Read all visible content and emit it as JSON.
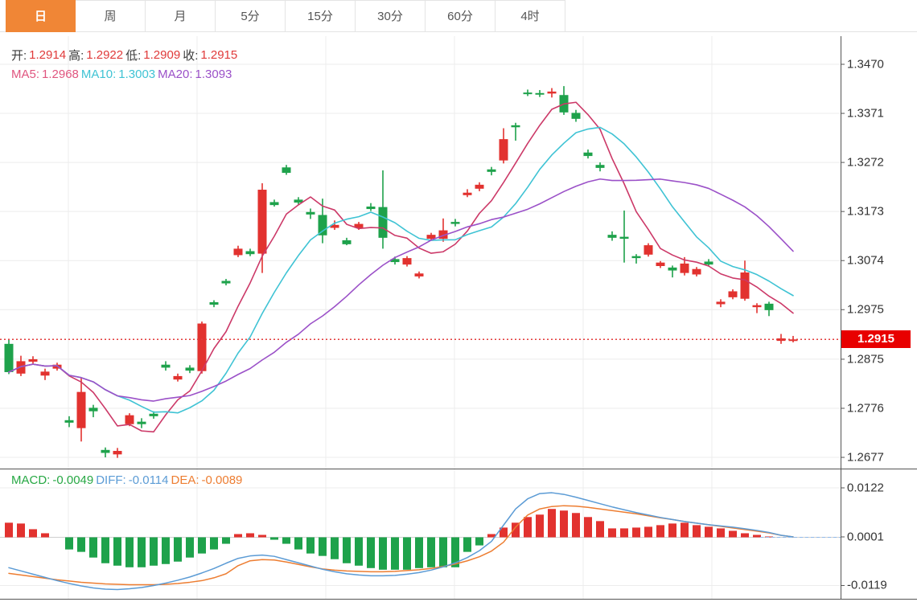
{
  "tabs": {
    "items": [
      {
        "label": "日",
        "name": "tab-day",
        "active": true
      },
      {
        "label": "周",
        "name": "tab-week",
        "active": false
      },
      {
        "label": "月",
        "name": "tab-month",
        "active": false
      },
      {
        "label": "5分",
        "name": "tab-5min",
        "active": false
      },
      {
        "label": "15分",
        "name": "tab-15min",
        "active": false
      },
      {
        "label": "30分",
        "name": "tab-30min",
        "active": false
      },
      {
        "label": "60分",
        "name": "tab-60min",
        "active": false
      },
      {
        "label": "4时",
        "name": "tab-4hour",
        "active": false
      }
    ]
  },
  "ohlc": {
    "open_label": "开:",
    "open_value": "1.2914",
    "high_label": "高:",
    "high_value": "1.2922",
    "low_label": "低:",
    "low_value": "1.2909",
    "close_label": "收:",
    "close_value": "1.2915"
  },
  "ma": {
    "ma5_label": "MA5:",
    "ma5_value": "1.2968",
    "ma10_label": "MA10:",
    "ma10_value": "1.3003",
    "ma20_label": "MA20:",
    "ma20_value": "1.3093"
  },
  "macd_header": {
    "macd_label": "MACD:",
    "macd_value": "-0.0049",
    "diff_label": "DIFF:",
    "diff_value": "-0.0114",
    "dea_label": "DEA:",
    "dea_value": "-0.0089"
  },
  "right_axis": {
    "price_ticks": [
      "1.3470",
      "1.3371",
      "1.3272",
      "1.3173",
      "1.3074",
      "1.2975",
      "1.2875",
      "1.2776",
      "1.2677"
    ],
    "current_price": "1.2915",
    "macd_ticks": [
      "0.0122",
      "0.0001",
      "-0.0119"
    ]
  },
  "colors": {
    "up": "#e2322f",
    "down": "#1ea24b",
    "ma5": "#cc3968",
    "ma5_text": "#e0557f",
    "ma10": "#3fc3d4",
    "ma20": "#9b51c8",
    "diff": "#5b9bd5",
    "dea": "#ed7d31",
    "macd_text": "#27a844",
    "ohlc_label": "#3a3a3a",
    "ohlc_value": "#e03a3a",
    "grid": "#ececec",
    "frame": "#555555",
    "axis_text": "#333333",
    "dotted_price_line": "#e23b3b",
    "badge_bg": "#e80000",
    "tab_active_bg": "#f08636",
    "zero_line": "#cfcfcf",
    "zero_dashed": "#8fb8e8"
  },
  "chart_data": {
    "type": "candlestick+macd",
    "title": "",
    "legend": [
      "MA5",
      "MA10",
      "MA20",
      "DIFF",
      "DEA",
      "MACD"
    ],
    "x_count": 66,
    "grid": true,
    "price_axis": {
      "ticks": [
        1.347,
        1.3371,
        1.3272,
        1.3173,
        1.3074,
        1.2975,
        1.2875,
        1.2776,
        1.2677
      ],
      "ylim": [
        1.2655,
        1.3527
      ],
      "current_price": 1.2915
    },
    "candles_ohlc": [
      [
        1.2906,
        1.2914,
        1.2845,
        1.2849
      ],
      [
        1.2846,
        1.2882,
        1.2841,
        1.2871
      ],
      [
        1.287,
        1.2881,
        1.2866,
        1.2875
      ],
      [
        1.2842,
        1.2856,
        1.2833,
        1.285
      ],
      [
        1.2856,
        1.2868,
        1.2852,
        1.2864
      ],
      [
        1.2752,
        1.276,
        1.2738,
        1.2747
      ],
      [
        1.2736,
        1.2838,
        1.2709,
        1.2809
      ],
      [
        1.2777,
        1.2783,
        1.2758,
        1.277
      ],
      [
        1.2692,
        1.2697,
        1.2677,
        1.2686
      ],
      [
        1.2683,
        1.2696,
        1.2676,
        1.269
      ],
      [
        1.2744,
        1.2766,
        1.274,
        1.2762
      ],
      [
        1.2749,
        1.2756,
        1.2736,
        1.2744
      ],
      [
        1.2765,
        1.277,
        1.2755,
        1.276
      ],
      [
        1.2864,
        1.2871,
        1.2852,
        1.2858
      ],
      [
        1.2834,
        1.2846,
        1.283,
        1.2841
      ],
      [
        1.2858,
        1.2863,
        1.2847,
        1.2852
      ],
      [
        1.2851,
        1.2951,
        1.2846,
        1.2947
      ],
      [
        1.299,
        1.2994,
        1.298,
        1.2985
      ],
      [
        1.3033,
        1.3037,
        1.3024,
        1.3028
      ],
      [
        1.3085,
        1.3104,
        1.3081,
        1.3098
      ],
      [
        1.3093,
        1.3098,
        1.3083,
        1.3087
      ],
      [
        1.3088,
        1.323,
        1.3049,
        1.3217
      ],
      [
        1.3192,
        1.3197,
        1.3183,
        1.3186
      ],
      [
        1.3262,
        1.3267,
        1.3247,
        1.3251
      ],
      [
        1.3197,
        1.3202,
        1.3187,
        1.3191
      ],
      [
        1.3172,
        1.3179,
        1.3158,
        1.3167
      ],
      [
        1.3166,
        1.3199,
        1.3109,
        1.3125
      ],
      [
        1.314,
        1.3155,
        1.3136,
        1.3146
      ],
      [
        1.3115,
        1.312,
        1.3105,
        1.3107
      ],
      [
        1.314,
        1.3152,
        1.3136,
        1.3148
      ],
      [
        1.3183,
        1.319,
        1.3174,
        1.3178
      ],
      [
        1.3182,
        1.3256,
        1.3098,
        1.312
      ],
      [
        1.3077,
        1.3082,
        1.3066,
        1.3071
      ],
      [
        1.3066,
        1.3083,
        1.3062,
        1.3079
      ],
      [
        1.3042,
        1.3052,
        1.3038,
        1.3048
      ],
      [
        1.3118,
        1.313,
        1.3114,
        1.3126
      ],
      [
        1.3118,
        1.3159,
        1.3112,
        1.3135
      ],
      [
        1.3152,
        1.3158,
        1.3143,
        1.3148
      ],
      [
        1.3206,
        1.3218,
        1.3202,
        1.3211
      ],
      [
        1.3219,
        1.3232,
        1.3214,
        1.3227
      ],
      [
        1.3258,
        1.3263,
        1.3246,
        1.3253
      ],
      [
        1.3276,
        1.3341,
        1.327,
        1.3319
      ],
      [
        1.3347,
        1.3352,
        1.3316,
        1.3343
      ],
      [
        1.3413,
        1.3419,
        1.3406,
        1.341
      ],
      [
        1.3412,
        1.3418,
        1.3404,
        1.3409
      ],
      [
        1.3411,
        1.3422,
        1.3403,
        1.3415
      ],
      [
        1.3408,
        1.3426,
        1.3368,
        1.3373
      ],
      [
        1.3372,
        1.3378,
        1.3354,
        1.336
      ],
      [
        1.3292,
        1.3298,
        1.328,
        1.3285
      ],
      [
        1.3267,
        1.3272,
        1.3254,
        1.3261
      ],
      [
        1.3126,
        1.3133,
        1.3114,
        1.312
      ],
      [
        1.3122,
        1.3175,
        1.307,
        1.3118
      ],
      [
        1.3083,
        1.3087,
        1.3068,
        1.3079
      ],
      [
        1.3086,
        1.3109,
        1.3082,
        1.3105
      ],
      [
        1.3063,
        1.3073,
        1.3059,
        1.307
      ],
      [
        1.306,
        1.3064,
        1.304,
        1.3054
      ],
      [
        1.3049,
        1.3081,
        1.3044,
        1.3068
      ],
      [
        1.3046,
        1.3061,
        1.3042,
        1.3057
      ],
      [
        1.3072,
        1.3077,
        1.3062,
        1.3066
      ],
      [
        1.2986,
        1.2996,
        1.298,
        1.2991
      ],
      [
        1.3,
        1.3016,
        1.2996,
        1.3012
      ],
      [
        1.2997,
        1.3074,
        1.2993,
        1.305
      ],
      [
        1.298,
        1.2988,
        1.2968,
        1.2984
      ],
      [
        1.2987,
        1.2991,
        1.2962,
        1.2974
      ],
      [
        1.2912,
        1.2926,
        1.2906,
        1.2917
      ],
      [
        1.2914,
        1.2922,
        1.2909,
        1.2915
      ]
    ],
    "ma_periods": [
      5,
      10,
      20
    ],
    "ma_displayed": {
      "ma5": 1.2968,
      "ma10": 1.3003,
      "ma20": 1.3093
    },
    "macd": {
      "ticks": [
        0.0122,
        0.0001,
        -0.0119
      ],
      "displayed": {
        "macd": -0.0049,
        "diff": -0.0114,
        "dea": -0.0089
      },
      "hist_1e4": [
        36,
        34,
        20,
        10,
        0,
        -30,
        -36,
        -50,
        -64,
        -70,
        -74,
        -74,
        -70,
        -66,
        -60,
        -50,
        -40,
        -30,
        -16,
        8,
        10,
        6,
        -6,
        -16,
        -30,
        -40,
        -46,
        -54,
        -64,
        -70,
        -76,
        -80,
        -80,
        -80,
        -76,
        -74,
        -74,
        -74,
        -36,
        -20,
        8,
        24,
        36,
        50,
        56,
        70,
        66,
        60,
        50,
        40,
        22,
        22,
        24,
        26,
        30,
        34,
        36,
        30,
        26,
        22,
        16,
        10,
        6,
        2,
        0,
        0
      ],
      "diff_1e4": [
        -75,
        -83,
        -91,
        -99,
        -107,
        -114,
        -120,
        -125,
        -128,
        -129,
        -127,
        -124,
        -119,
        -113,
        -106,
        -98,
        -88,
        -77,
        -64,
        -52,
        -46,
        -44,
        -47,
        -55,
        -63,
        -71,
        -79,
        -85,
        -90,
        -93,
        -95,
        -95,
        -94,
        -91,
        -87,
        -81,
        -73,
        -63,
        -50,
        -33,
        -10,
        30,
        70,
        95,
        108,
        110,
        106,
        99,
        91,
        83,
        75,
        68,
        61,
        55,
        49,
        44,
        39,
        35,
        31,
        28,
        25,
        21,
        17,
        12,
        5,
        1
      ],
      "dea_1e4": [
        -89,
        -93,
        -97,
        -101,
        -105,
        -108,
        -111,
        -113,
        -115,
        -116,
        -117,
        -117,
        -117,
        -116,
        -114,
        -111,
        -107,
        -100,
        -90,
        -70,
        -58,
        -55,
        -56,
        -61,
        -67,
        -73,
        -78,
        -81,
        -83,
        -84,
        -85,
        -85,
        -84,
        -82,
        -80,
        -77,
        -72,
        -66,
        -58,
        -48,
        -34,
        -12,
        25,
        55,
        70,
        76,
        78,
        77,
        74,
        70,
        66,
        62,
        58,
        53,
        48,
        44,
        39,
        35,
        31,
        27,
        23,
        19,
        15,
        11,
        5,
        1
      ]
    }
  }
}
